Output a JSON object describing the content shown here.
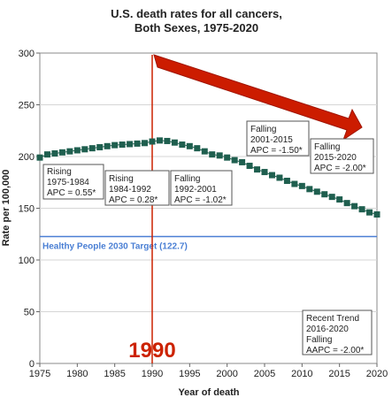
{
  "chart_data": {
    "type": "line",
    "title_lines": [
      "U.S. death rates for all cancers,",
      "Both Sexes,  1975-2020"
    ],
    "xlabel": "Year of death",
    "ylabel": "Rate per 100,000",
    "xlim": [
      1975,
      2020
    ],
    "ylim": [
      0,
      300
    ],
    "x_ticks": [
      "1975",
      "1980",
      "1985",
      "1990",
      "1995",
      "2000",
      "2005",
      "2010",
      "2015",
      "2020"
    ],
    "y_ticks": [
      "0",
      "50",
      "100",
      "150",
      "200",
      "250",
      "300"
    ],
    "grid": "horizontal",
    "series": [
      {
        "marker": "square",
        "color": "#1f5f4f",
        "x": [
          1975,
          1976,
          1977,
          1978,
          1979,
          1980,
          1981,
          1982,
          1983,
          1984,
          1985,
          1986,
          1987,
          1988,
          1989,
          1990,
          1991,
          1992,
          1993,
          1994,
          1995,
          1996,
          1997,
          1998,
          1999,
          2000,
          2001,
          2002,
          2003,
          2004,
          2005,
          2006,
          2007,
          2008,
          2009,
          2010,
          2011,
          2012,
          2013,
          2014,
          2015,
          2016,
          2017,
          2018,
          2019,
          2020
        ],
        "y": [
          199.0,
          202.0,
          203.0,
          204.0,
          205.0,
          206.0,
          207.0,
          208.0,
          209.0,
          210.0,
          211.0,
          211.5,
          212.0,
          212.5,
          213.0,
          214.5,
          215.5,
          215.0,
          213.5,
          211.5,
          210.0,
          208.0,
          205.0,
          202.0,
          201.0,
          199.0,
          196.5,
          194.5,
          191.0,
          187.5,
          185.0,
          182.0,
          179.5,
          176.5,
          173.5,
          171.5,
          168.5,
          166.0,
          163.5,
          161.0,
          158.5,
          155.0,
          152.0,
          149.0,
          146.0,
          144.0
        ]
      }
    ],
    "reference_line": {
      "value": 122.7,
      "label": "Healthy People 2030 Target (122.7)",
      "color": "#4a7fd4"
    },
    "vertical_marker": {
      "x": 1990,
      "label": "1990",
      "color": "#cc2200"
    },
    "annotations": [
      {
        "lines": [
          "Rising",
          "1975-1984",
          "APC =  0.55*"
        ]
      },
      {
        "lines": [
          "Rising",
          "1984-1992",
          "APC =  0.28*"
        ]
      },
      {
        "lines": [
          "Falling",
          "1992-2001",
          "APC = -1.02*"
        ]
      },
      {
        "lines": [
          "Falling",
          "2001-2015",
          "APC = -1.50*"
        ]
      },
      {
        "lines": [
          "Falling",
          "2015-2020",
          "APC = -2.00*"
        ]
      },
      {
        "lines": [
          "Recent Trend",
          "2016-2020",
          "Falling",
          "AAPC = -2.00*"
        ]
      }
    ]
  }
}
